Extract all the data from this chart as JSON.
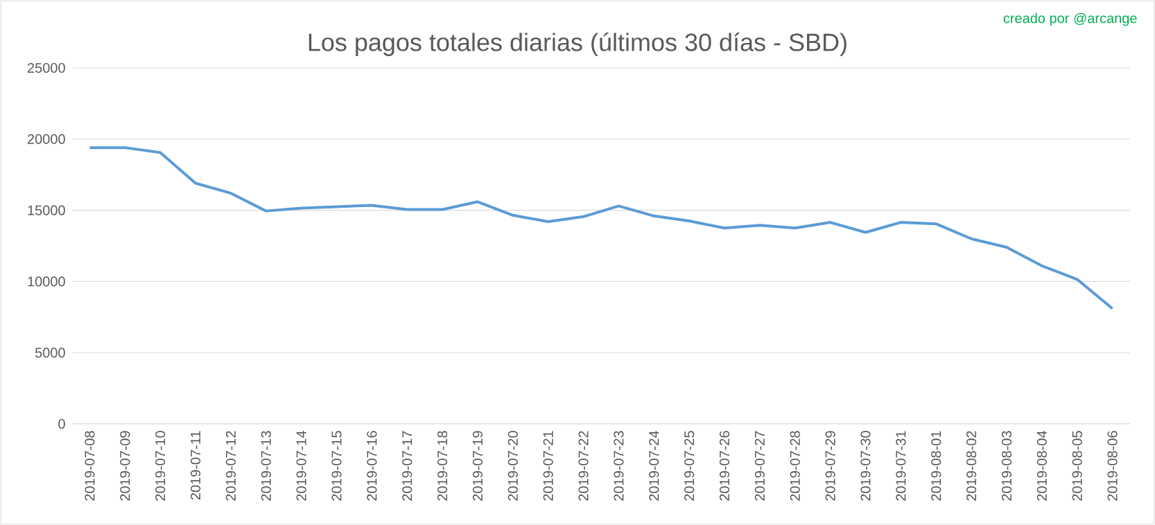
{
  "chart_data": {
    "type": "line",
    "title": "Los pagos totales diarias (últimos 30 días - SBD)",
    "annotations": [
      "creado por @arcange"
    ],
    "categories": [
      "2019-07-08",
      "2019-07-09",
      "2019-07-10",
      "2019-07-11",
      "2019-07-12",
      "2019-07-13",
      "2019-07-14",
      "2019-07-15",
      "2019-07-16",
      "2019-07-17",
      "2019-07-18",
      "2019-07-19",
      "2019-07-20",
      "2019-07-21",
      "2019-07-22",
      "2019-07-23",
      "2019-07-24",
      "2019-07-25",
      "2019-07-26",
      "2019-07-27",
      "2019-07-28",
      "2019-07-29",
      "2019-07-30",
      "2019-07-31",
      "2019-08-01",
      "2019-08-02",
      "2019-08-03",
      "2019-08-04",
      "2019-08-05",
      "2019-08-06"
    ],
    "series": [
      {
        "color": "#5b9bd5",
        "values": [
          19400,
          19400,
          19050,
          16900,
          16200,
          14950,
          15150,
          15250,
          15350,
          15050,
          15050,
          15600,
          14650,
          14200,
          14550,
          15300,
          14600,
          14250,
          13750,
          13950,
          13750,
          14150,
          13450,
          14150,
          14050,
          13000,
          12400,
          11100,
          10150,
          8100
        ]
      }
    ],
    "ylim": [
      0,
      25000
    ],
    "yticks": [
      0,
      5000,
      10000,
      15000,
      20000,
      25000
    ],
    "grid": "y",
    "marker": "none",
    "line_style": "solid"
  }
}
